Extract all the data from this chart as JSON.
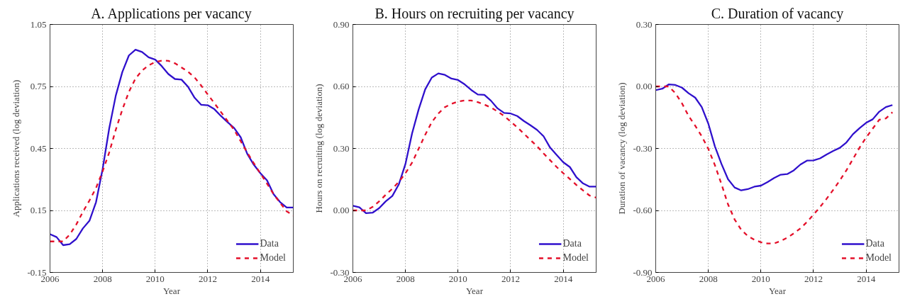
{
  "chart_data": [
    {
      "type": "line",
      "title": "A. Applications per vacancy",
      "xlabel": "Year",
      "ylabel": "Applications received (log deviation)",
      "xlim": [
        2006,
        2015.25
      ],
      "xticks": [
        2006,
        2008,
        2010,
        2012,
        2014
      ],
      "ylim": [
        -0.15,
        1.05
      ],
      "yticks": [
        -0.15,
        0.15,
        0.45,
        0.75,
        1.05
      ],
      "grid": true,
      "legend": "bottom right",
      "x": [
        2006,
        2006.25,
        2006.5,
        2006.75,
        2007,
        2007.25,
        2007.5,
        2007.75,
        2008,
        2008.25,
        2008.5,
        2008.75,
        2009,
        2009.25,
        2009.5,
        2009.75,
        2010,
        2010.25,
        2010.5,
        2010.75,
        2011,
        2011.25,
        2011.5,
        2011.75,
        2012,
        2012.25,
        2012.5,
        2012.75,
        2013,
        2013.25,
        2013.5,
        2013.75,
        2014,
        2014.25,
        2014.5,
        2014.75,
        2015,
        2015.25
      ],
      "series": [
        {
          "name": "Data",
          "color": "#2f10cc",
          "line_style": "solid",
          "values": [
            0.035,
            0.021,
            -0.018,
            -0.013,
            0.012,
            0.063,
            0.1,
            0.19,
            0.35,
            0.546,
            0.705,
            0.82,
            0.9,
            0.928,
            0.917,
            0.891,
            0.88,
            0.848,
            0.81,
            0.786,
            0.783,
            0.748,
            0.695,
            0.661,
            0.659,
            0.64,
            0.607,
            0.577,
            0.549,
            0.504,
            0.424,
            0.371,
            0.33,
            0.296,
            0.229,
            0.19,
            0.164,
            0.164
          ]
        },
        {
          "name": "Model",
          "color": "#e4102a",
          "line_style": "dashed",
          "values": [
            0.0,
            0.0,
            0.0,
            0.033,
            0.082,
            0.143,
            0.198,
            0.259,
            0.339,
            0.43,
            0.54,
            0.638,
            0.724,
            0.788,
            0.827,
            0.852,
            0.868,
            0.875,
            0.874,
            0.862,
            0.842,
            0.821,
            0.793,
            0.754,
            0.711,
            0.669,
            0.626,
            0.583,
            0.54,
            0.485,
            0.43,
            0.378,
            0.329,
            0.28,
            0.229,
            0.186,
            0.146,
            0.125
          ]
        }
      ]
    },
    {
      "type": "line",
      "title": "B. Hours on recruiting per vacancy",
      "xlabel": "Year",
      "ylabel": "Hours on recruiting (log deviation)",
      "xlim": [
        2006,
        2015.25
      ],
      "xticks": [
        2006,
        2008,
        2010,
        2012,
        2014
      ],
      "ylim": [
        -0.3,
        0.9
      ],
      "yticks": [
        {
          "value": -0.3,
          "label": "-0.30"
        },
        {
          "value": 0,
          "label": "0.00"
        },
        {
          "value": 0.3,
          "label": "0.30"
        },
        {
          "value": 0.6,
          "label": "0.60"
        },
        {
          "value": 0.9,
          "label": "0.90"
        }
      ],
      "grid": true,
      "legend": "bottom right",
      "x": [
        2006,
        2006.25,
        2006.5,
        2006.75,
        2007,
        2007.25,
        2007.5,
        2007.75,
        2008,
        2008.25,
        2008.5,
        2008.75,
        2009,
        2009.25,
        2009.5,
        2009.75,
        2010,
        2010.25,
        2010.5,
        2010.75,
        2011,
        2011.25,
        2011.5,
        2011.75,
        2012,
        2012.25,
        2012.5,
        2012.75,
        2013,
        2013.25,
        2013.5,
        2013.75,
        2014,
        2014.25,
        2014.5,
        2014.75,
        2015,
        2015.25
      ],
      "series": [
        {
          "name": "Data",
          "color": "#2f10cc",
          "line_style": "solid",
          "values": [
            0.023,
            0.015,
            -0.013,
            -0.011,
            0.011,
            0.044,
            0.07,
            0.127,
            0.225,
            0.372,
            0.488,
            0.586,
            0.643,
            0.663,
            0.656,
            0.638,
            0.631,
            0.61,
            0.583,
            0.561,
            0.559,
            0.531,
            0.494,
            0.472,
            0.469,
            0.457,
            0.433,
            0.412,
            0.39,
            0.359,
            0.304,
            0.268,
            0.233,
            0.21,
            0.161,
            0.131,
            0.115,
            0.115
          ]
        },
        {
          "name": "Model",
          "color": "#e4102a",
          "line_style": "dashed",
          "values": [
            0.0,
            0.0,
            0.0,
            0.017,
            0.044,
            0.076,
            0.105,
            0.139,
            0.18,
            0.231,
            0.298,
            0.366,
            0.427,
            0.469,
            0.5,
            0.516,
            0.527,
            0.532,
            0.532,
            0.524,
            0.512,
            0.498,
            0.479,
            0.457,
            0.43,
            0.402,
            0.372,
            0.341,
            0.311,
            0.276,
            0.243,
            0.21,
            0.18,
            0.152,
            0.123,
            0.097,
            0.072,
            0.062
          ]
        }
      ]
    },
    {
      "type": "line",
      "title": "C. Duration of vacancy",
      "xlabel": "Year",
      "ylabel": "Duration of vacancy (log deviation)",
      "xlim": [
        2006,
        2015.25
      ],
      "xticks": [
        2006,
        2008,
        2010,
        2012,
        2014
      ],
      "ylim": [
        -0.9,
        0.3
      ],
      "yticks": [
        {
          "value": -0.9,
          "label": "-0.90"
        },
        {
          "value": -0.6,
          "label": "-0.60"
        },
        {
          "value": -0.3,
          "label": "-0.30"
        },
        {
          "value": 0,
          "label": "0.00"
        },
        {
          "value": 0.3,
          "label": "0.30"
        }
      ],
      "grid": true,
      "legend": "bottom right",
      "x": [
        2006,
        2006.25,
        2006.5,
        2006.75,
        2007,
        2007.25,
        2007.5,
        2007.75,
        2008,
        2008.25,
        2008.5,
        2008.75,
        2009,
        2009.25,
        2009.5,
        2009.75,
        2010,
        2010.25,
        2010.5,
        2010.75,
        2011,
        2011.25,
        2011.5,
        2011.75,
        2012,
        2012.25,
        2012.5,
        2012.75,
        2013,
        2013.25,
        2013.5,
        2013.75,
        2014,
        2014.25,
        2014.5,
        2014.75,
        2015
      ],
      "series": [
        {
          "name": "Data",
          "color": "#2f10cc",
          "line_style": "solid",
          "values": [
            -0.018,
            -0.011,
            0.01,
            0.007,
            -0.006,
            -0.033,
            -0.054,
            -0.1,
            -0.18,
            -0.29,
            -0.375,
            -0.449,
            -0.489,
            -0.503,
            -0.497,
            -0.485,
            -0.48,
            -0.463,
            -0.443,
            -0.427,
            -0.424,
            -0.406,
            -0.378,
            -0.359,
            -0.358,
            -0.348,
            -0.329,
            -0.312,
            -0.297,
            -0.271,
            -0.231,
            -0.202,
            -0.176,
            -0.159,
            -0.122,
            -0.1,
            -0.09
          ]
        },
        {
          "name": "Model",
          "color": "#e4102a",
          "line_style": "dashed",
          "values": [
            0.0,
            0.0,
            0.0,
            -0.033,
            -0.082,
            -0.143,
            -0.19,
            -0.241,
            -0.302,
            -0.381,
            -0.473,
            -0.571,
            -0.644,
            -0.693,
            -0.724,
            -0.742,
            -0.754,
            -0.76,
            -0.76,
            -0.748,
            -0.732,
            -0.711,
            -0.687,
            -0.656,
            -0.62,
            -0.583,
            -0.543,
            -0.5,
            -0.455,
            -0.406,
            -0.351,
            -0.296,
            -0.247,
            -0.204,
            -0.161,
            -0.155,
            -0.125
          ]
        }
      ]
    }
  ]
}
